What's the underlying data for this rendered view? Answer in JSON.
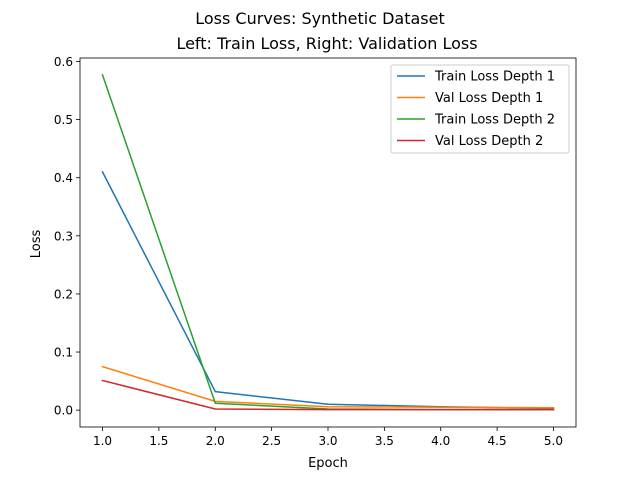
{
  "chart_data": {
    "type": "line",
    "title": "Loss Curves: Synthetic Dataset",
    "subtitle": "Left: Train Loss, Right: Validation Loss",
    "xlabel": "Epoch",
    "ylabel": "Loss",
    "xlim": [
      0.8,
      5.2
    ],
    "ylim": [
      -0.029,
      0.606
    ],
    "x_ticks": [
      1.0,
      1.5,
      2.0,
      2.5,
      3.0,
      3.5,
      4.0,
      4.5,
      5.0
    ],
    "y_ticks": [
      0.0,
      0.1,
      0.2,
      0.3,
      0.4,
      0.5,
      0.6
    ],
    "grid": false,
    "legend_position": "top-right",
    "x": [
      1,
      2,
      3,
      4,
      5
    ],
    "series": [
      {
        "name": "Train Loss Depth 1",
        "color": "#1f77b4",
        "values": [
          0.41,
          0.032,
          0.01,
          0.006,
          0.003
        ]
      },
      {
        "name": "Val Loss Depth 1",
        "color": "#ff7f0e",
        "values": [
          0.075,
          0.015,
          0.006,
          0.005,
          0.004
        ]
      },
      {
        "name": "Train Loss Depth 2",
        "color": "#2ca02c",
        "values": [
          0.577,
          0.012,
          0.002,
          0.001,
          0.001
        ]
      },
      {
        "name": "Val Loss Depth 2",
        "color": "#d62728",
        "values": [
          0.051,
          0.002,
          0.001,
          0.001,
          0.001
        ]
      }
    ]
  }
}
